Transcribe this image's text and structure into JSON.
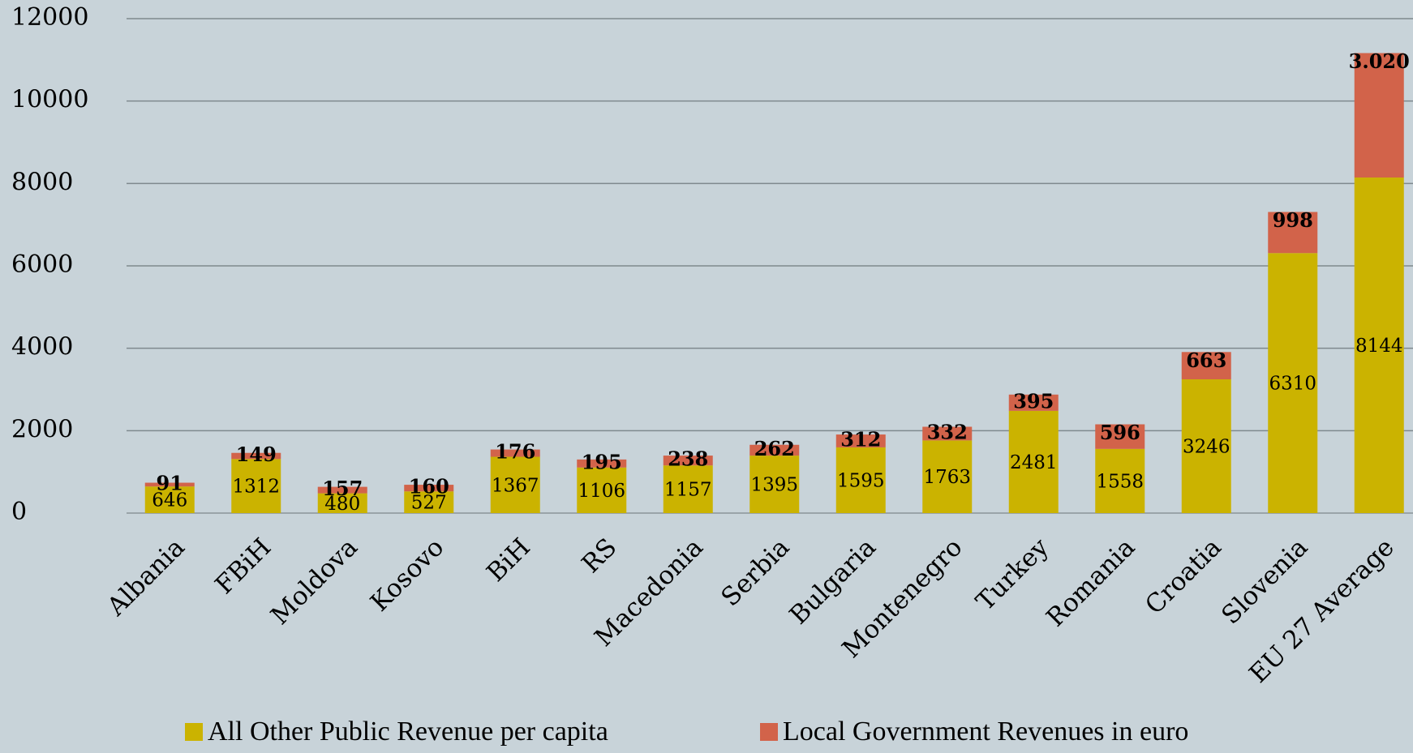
{
  "chart_data": {
    "type": "stacked_bar",
    "categories": [
      "Albania",
      "FBiH",
      "Moldova",
      "Kosovo",
      "BiH",
      "RS",
      "Macedonia",
      "Serbia",
      "Bulgaria",
      "Montenegro",
      "Turkey",
      "Romania",
      "Croatia",
      "Slovenia",
      "EU 27 Average"
    ],
    "series": [
      {
        "name": "All Other Public Revenue per capita",
        "color": "#cbb300",
        "values": [
          646,
          1312,
          480,
          527,
          1367,
          1106,
          1157,
          1395,
          1595,
          1763,
          2481,
          1558,
          3246,
          6310,
          8144
        ]
      },
      {
        "name": "Local Government Revenues in euro",
        "color": "#d2634a",
        "values": [
          91,
          149,
          157,
          160,
          176,
          195,
          238,
          262,
          312,
          332,
          395,
          596,
          663,
          998,
          3020
        ],
        "value_labels": [
          "91",
          "149",
          "157",
          "160",
          "176",
          "195",
          "238",
          "262",
          "312",
          "332",
          "395",
          "596",
          "663",
          "998",
          "3.020"
        ]
      }
    ],
    "ylim": [
      0,
      12000
    ],
    "yticks": [
      0,
      2000,
      4000,
      6000,
      8000,
      10000,
      12000
    ],
    "grid": true,
    "legend": "bottom"
  }
}
